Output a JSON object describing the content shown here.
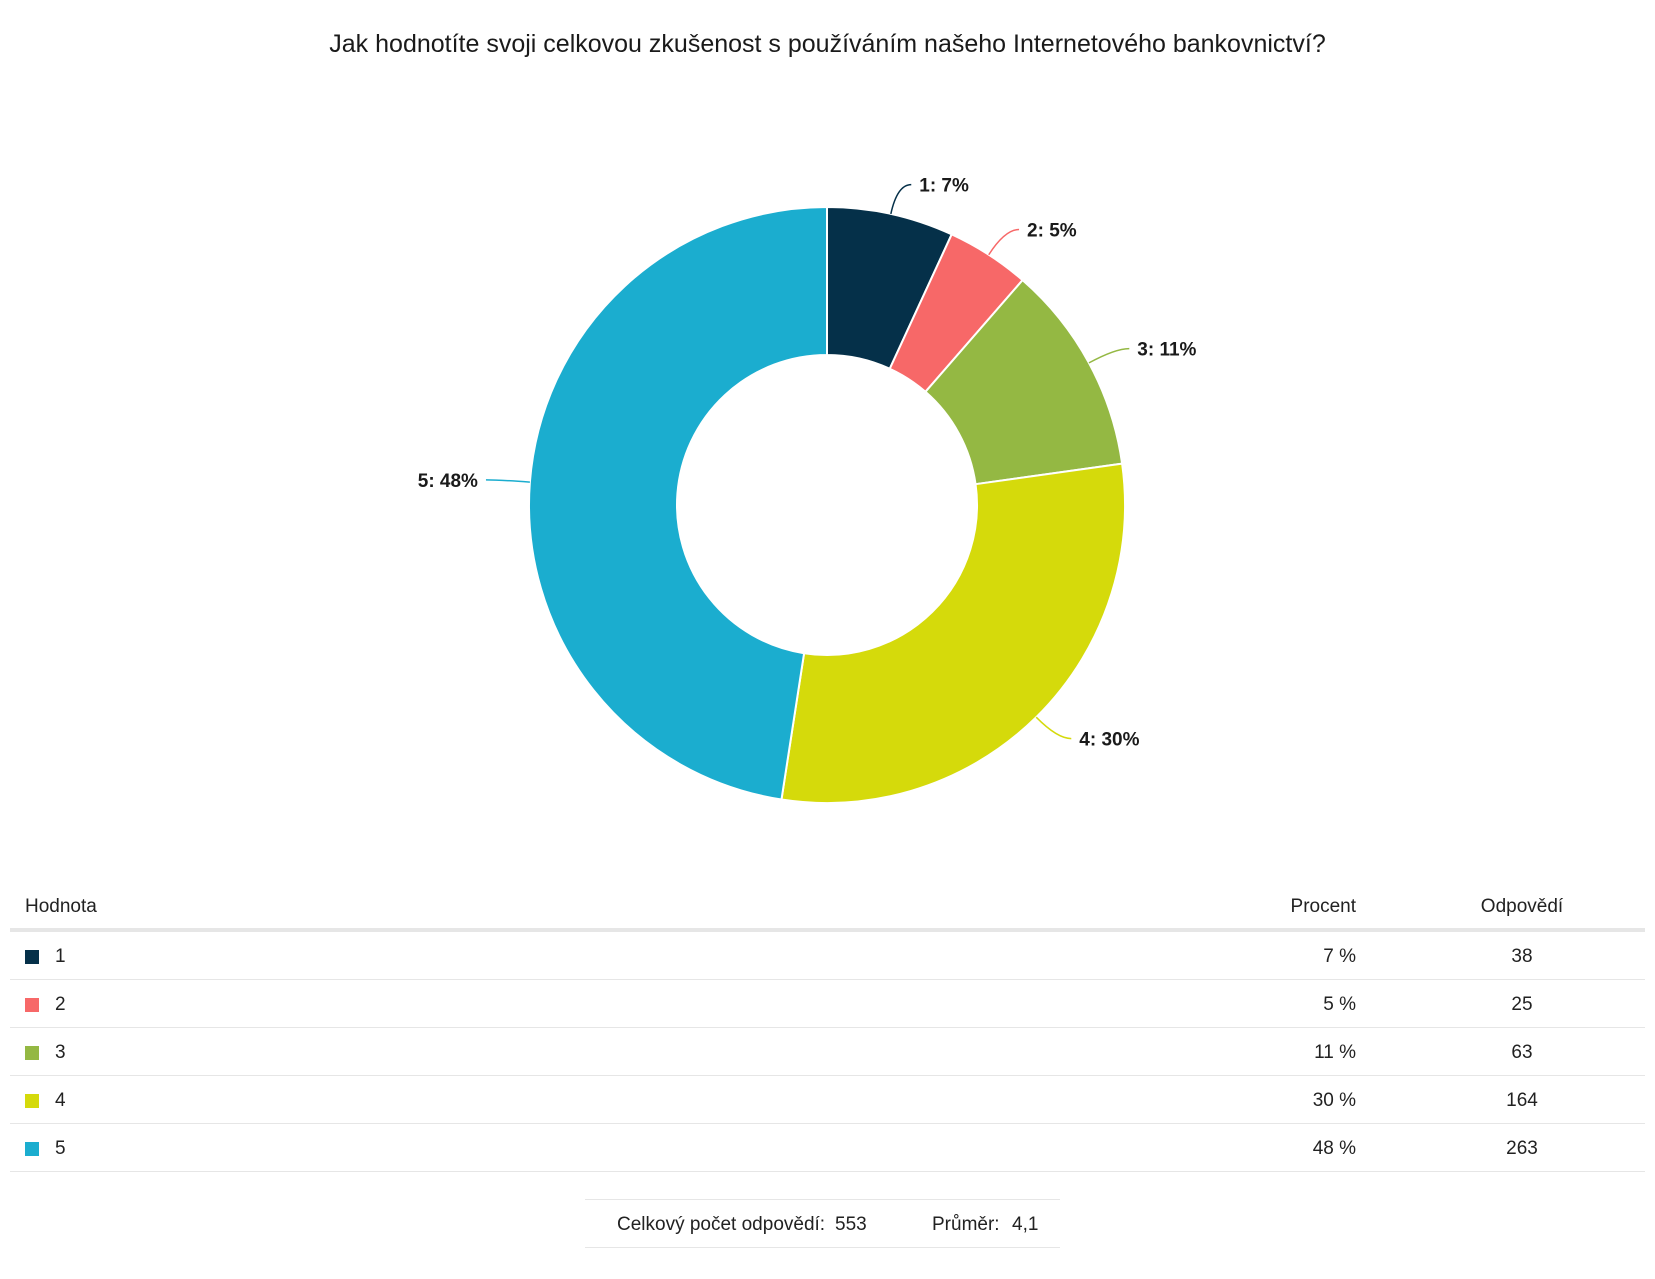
{
  "title": "Jak hodnotíte svoji celkovou zkušenost s používáním našeho Internetového bankovnictví?",
  "chart_data": {
    "type": "pie",
    "variant": "donut",
    "categories": [
      "1",
      "2",
      "3",
      "4",
      "5"
    ],
    "values": [
      38,
      25,
      63,
      164,
      263
    ],
    "percentages": [
      7,
      5,
      11,
      30,
      48
    ],
    "data_labels": [
      "1: 7%",
      "2: 5%",
      "3: 11%",
      "4: 30%",
      "5: 48%"
    ],
    "colors": [
      "#053049",
      "#f76868",
      "#94b843",
      "#d5da0b",
      "#1badcf"
    ],
    "legend": "none"
  },
  "table": {
    "headers": {
      "value": "Hodnota",
      "percent": "Procent",
      "responses": "Odpovědí"
    },
    "rows": [
      {
        "value": "1",
        "percent": "7 %",
        "responses": "38",
        "color": "#053049"
      },
      {
        "value": "2",
        "percent": "5 %",
        "responses": "25",
        "color": "#f76868"
      },
      {
        "value": "3",
        "percent": "11 %",
        "responses": "63",
        "color": "#94b843"
      },
      {
        "value": "4",
        "percent": "30 %",
        "responses": "164",
        "color": "#d5da0b"
      },
      {
        "value": "5",
        "percent": "48 %",
        "responses": "263",
        "color": "#1badcf"
      }
    ]
  },
  "summary": {
    "total_label": "Celkový počet odpovědí:",
    "total_value": "553",
    "average_label": "Průměr:",
    "average_value": "4,1"
  }
}
